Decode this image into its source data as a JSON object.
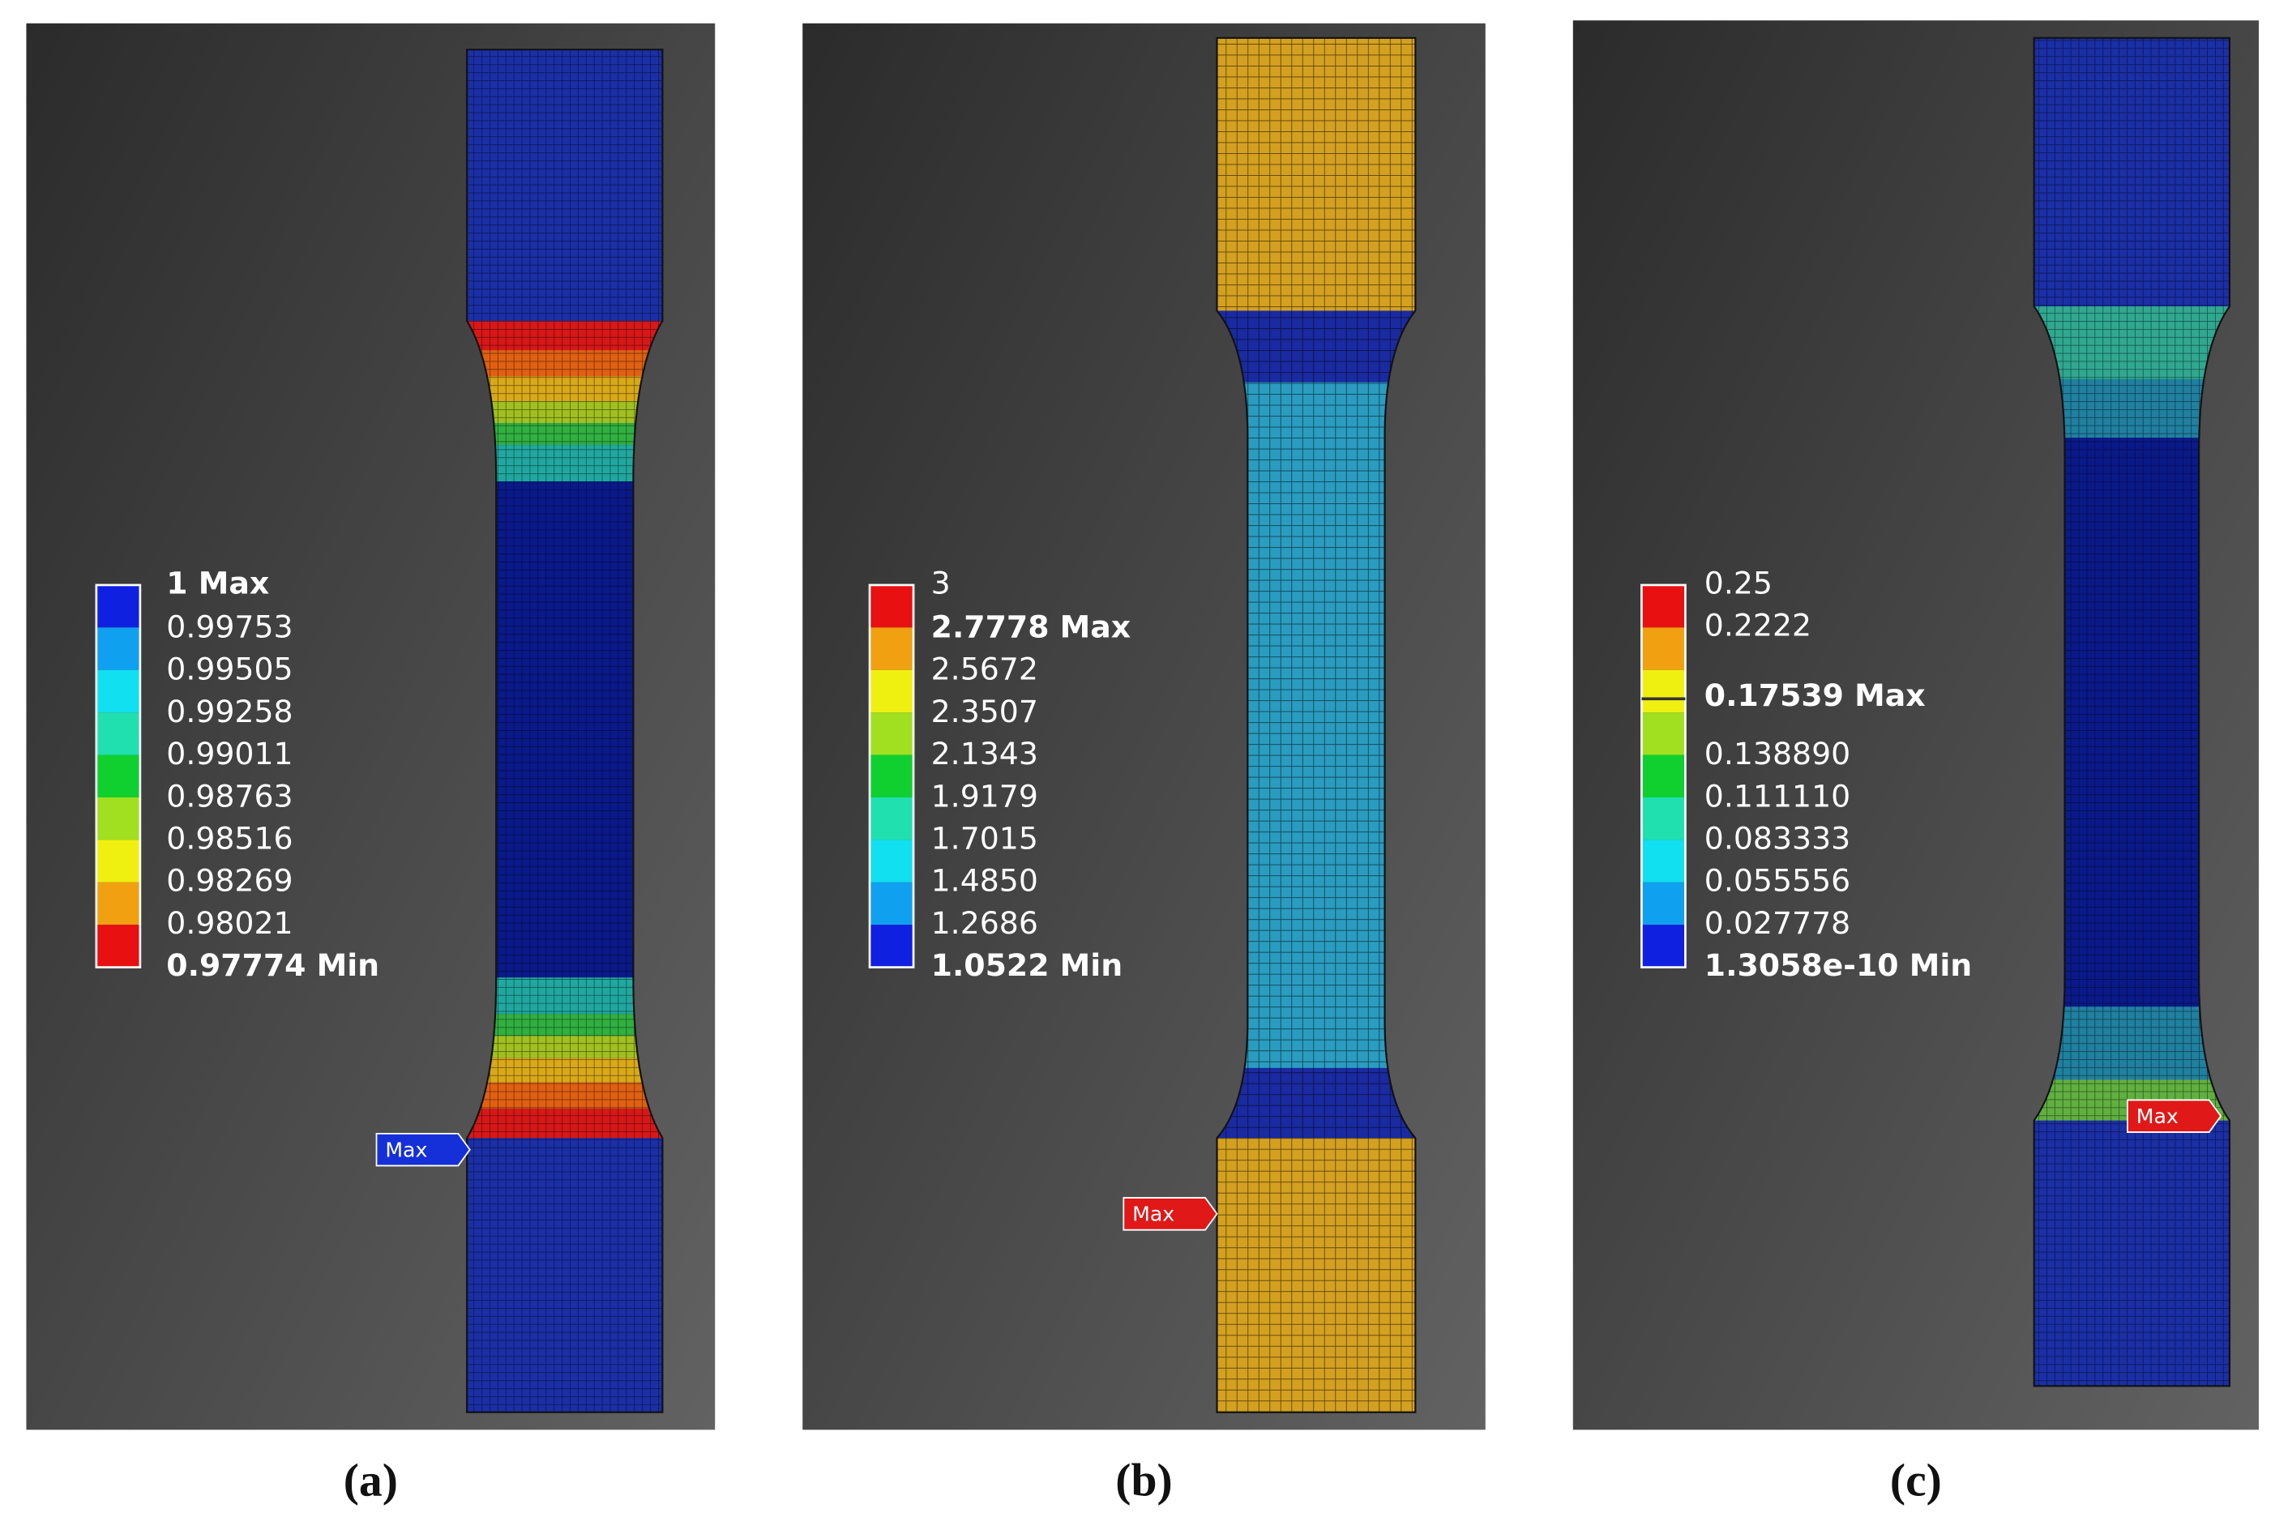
{
  "panels": [
    {
      "caption": "(a)",
      "marker": "Max",
      "legend": [
        "1 Max",
        "0.99753",
        "0.99505",
        "0.99258",
        "0.99011",
        "0.98763",
        "0.98516",
        "0.98269",
        "0.98021",
        "0.97774 Min"
      ]
    },
    {
      "caption": "(b)",
      "marker": "Max",
      "legend": [
        "3",
        "2.7778 Max",
        "2.5672",
        "2.3507",
        "2.1343",
        "1.9179",
        "1.7015",
        "1.4850",
        "1.2686",
        "1.0522 Min"
      ]
    },
    {
      "caption": "(c)",
      "marker": "Max",
      "legend": [
        "0.25",
        "0.2222",
        "0.17539 Max",
        "0.138890",
        "0.111110",
        "0.083333",
        "0.055556",
        "0.027778",
        "1.3058e-10 Min"
      ]
    }
  ]
}
